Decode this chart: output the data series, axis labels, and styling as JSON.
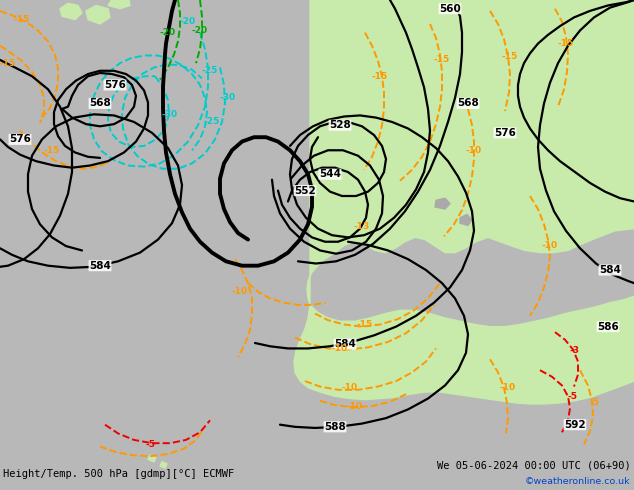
{
  "title_left": "Height/Temp. 500 hPa [gdmp][°C] ECMWF",
  "title_right": "We 05-06-2024 00:00 UTC (06+90)",
  "credit": "©weatheronline.co.uk",
  "bg_color": "#d0d0d0",
  "land_color": "#c8eaaa",
  "gray_color": "#b8b8b8",
  "fig_width": 6.34,
  "fig_height": 4.9,
  "dpi": 100,
  "orange": "#FF9900",
  "cyan": "#00CCCC",
  "green": "#00AA00",
  "red": "#EE0000"
}
